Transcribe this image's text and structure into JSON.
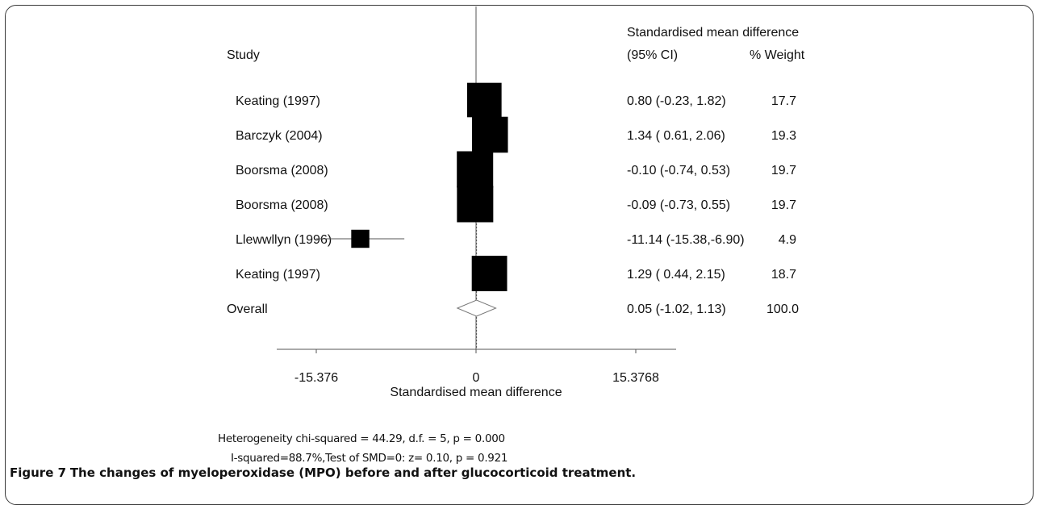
{
  "header": {
    "study_label": "Study",
    "effect_label": "Standardised mean difference",
    "ci_label": "(95% CI)",
    "weight_label": "% Weight"
  },
  "chart_data": {
    "type": "forest",
    "xlabel": "Standardised mean difference",
    "xlim": [
      -15.376,
      15.3768
    ],
    "ticks": [
      {
        "value": -15.376,
        "label": "-15.376"
      },
      {
        "value": 0,
        "label": "0"
      },
      {
        "value": 15.3768,
        "label": "15.3768"
      }
    ],
    "studies": [
      {
        "name": "Keating (1997)",
        "smd": 0.8,
        "lo": -0.23,
        "hi": 1.82,
        "ci_text": "0.80 (-0.23, 1.82)",
        "weight": 17.7,
        "weight_text": "17.7"
      },
      {
        "name": "Barczyk (2004)",
        "smd": 1.34,
        "lo": 0.61,
        "hi": 2.06,
        "ci_text": "1.34 ( 0.61, 2.06)",
        "weight": 19.3,
        "weight_text": "19.3"
      },
      {
        "name": "Boorsma (2008)",
        "smd": -0.1,
        "lo": -0.74,
        "hi": 0.53,
        "ci_text": "-0.10 (-0.74, 0.53)",
        "weight": 19.7,
        "weight_text": "19.7"
      },
      {
        "name": "Boorsma (2008)",
        "smd": -0.09,
        "lo": -0.73,
        "hi": 0.55,
        "ci_text": "-0.09 (-0.73, 0.55)",
        "weight": 19.7,
        "weight_text": "19.7"
      },
      {
        "name": "Llewwllyn (1996)",
        "smd": -11.14,
        "lo": -15.38,
        "hi": -6.9,
        "ci_text": "-11.14 (-15.38,-6.90)",
        "weight": 4.9,
        "weight_text": "4.9"
      },
      {
        "name": "Keating (1997)",
        "smd": 1.29,
        "lo": 0.44,
        "hi": 2.15,
        "ci_text": "1.29 ( 0.44, 2.15)",
        "weight": 18.7,
        "weight_text": "18.7"
      }
    ],
    "overall": {
      "name": "Overall",
      "smd": 0.05,
      "lo": -1.02,
      "hi": 1.13,
      "ci_text": "0.05 (-1.02, 1.13)",
      "weight_text": "100.0"
    }
  },
  "footnotes": {
    "heterogeneity": "Heterogeneity chi-squared = 44.29, d.f. = 5, p = 0.000",
    "isquared": "I-squared=88.7%,Test of SMD=0: z= 0.10, p = 0.921"
  },
  "caption": {
    "label": "Figure 7",
    "text": "The changes of myeloperoxidase (MPO) before and after glucocorticoid treatment."
  }
}
